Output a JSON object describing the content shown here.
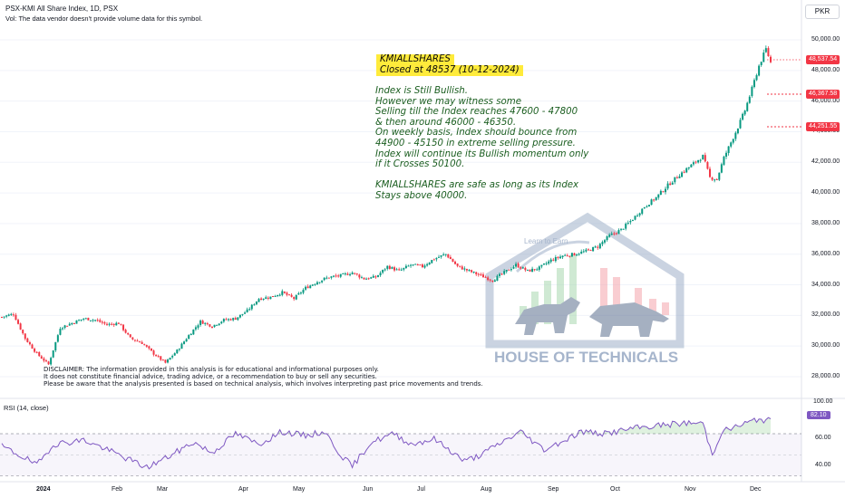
{
  "header": {
    "title": "PSX-KMI All Share Index, 1D, PSX",
    "vol_note": "Vol: The data vendor doesn't provide volume data for this symbol.",
    "currency": "PKR"
  },
  "price_axis": {
    "labels": [
      "50,000.00",
      "48,000.00",
      "46,000.00",
      "44,000.00",
      "42,000.00",
      "40,000.00",
      "38,000.00",
      "36,000.00",
      "34,000.00",
      "32,000.00",
      "30,000.00",
      "28,000.00"
    ],
    "tag_close": "48,537.54",
    "tag_level1": "46,367.58",
    "tag_level2": "44,251.55"
  },
  "annotation": {
    "headline_1": "KMIALLSHARES",
    "headline_2": "Closed at 48537 (10-12-2024)",
    "body": "Index is Still Bullish.\nHowever we may witness some\nSelling till the Index reaches 47600 - 47800\n& then around 46000 - 46350.\nOn weekly basis, Index should bounce from\n44900 - 45150 in extreme selling pressure.\nIndex will continue its Bullish momentum only\nif it Crosses 50100.\n\nKMIALLSHARES are safe as long as its Index\nStays above 40000."
  },
  "disclaimer": "DISCLAIMER: The information provided in this analysis is for educational and informational purposes only.\nIt does not constitute financial advice, trading advice, or a recommendation to buy or sell any securities.\nPlease be aware that the analysis presented is based on technical analysis, which involves interpreting past price movements and trends.",
  "watermark": {
    "brand": "HOUSE OF TECHNICALS",
    "arc_text": "Learn to Earn"
  },
  "rsi": {
    "title": "RSI (14, close)",
    "value": "82.10",
    "axis_labels": [
      "100.00",
      "60.00",
      "40.00"
    ]
  },
  "time_axis": {
    "months": [
      "2024",
      "Feb",
      "Mar",
      "Apr",
      "May",
      "Jun",
      "Jul",
      "Aug",
      "Sep",
      "Oct",
      "Nov",
      "Dec"
    ]
  },
  "colors": {
    "up": "#089981",
    "down": "#f23645",
    "rsi_line": "#7e57c2",
    "highlight": "#ffeb3b",
    "note_text": "#1b5e20"
  },
  "chart_data": {
    "type": "candlestick",
    "symbol": "PSX-KMI All Share Index",
    "interval": "1D",
    "ylim": [
      27000,
      50600
    ],
    "key_levels": [
      48537.54,
      46367.58,
      44251.55
    ],
    "close_path": [
      [
        0,
        31900
      ],
      [
        5,
        32100
      ],
      [
        10,
        30500
      ],
      [
        15,
        29500
      ],
      [
        20,
        28800
      ],
      [
        25,
        31200
      ],
      [
        30,
        31500
      ],
      [
        35,
        31800
      ],
      [
        40,
        31700
      ],
      [
        45,
        31400
      ],
      [
        50,
        31500
      ],
      [
        55,
        30500
      ],
      [
        60,
        30200
      ],
      [
        65,
        29500
      ],
      [
        70,
        28900
      ],
      [
        75,
        29700
      ],
      [
        80,
        30700
      ],
      [
        85,
        31600
      ],
      [
        90,
        31300
      ],
      [
        95,
        31700
      ],
      [
        100,
        31800
      ],
      [
        105,
        32300
      ],
      [
        110,
        33100
      ],
      [
        115,
        33200
      ],
      [
        120,
        33500
      ],
      [
        125,
        33100
      ],
      [
        130,
        33800
      ],
      [
        135,
        34200
      ],
      [
        140,
        34500
      ],
      [
        145,
        34600
      ],
      [
        150,
        34800
      ],
      [
        155,
        34400
      ],
      [
        160,
        34500
      ],
      [
        165,
        35200
      ],
      [
        170,
        34900
      ],
      [
        175,
        35300
      ],
      [
        180,
        35200
      ],
      [
        185,
        35700
      ],
      [
        190,
        36000
      ],
      [
        195,
        35200
      ],
      [
        200,
        34900
      ],
      [
        205,
        34600
      ],
      [
        210,
        34300
      ],
      [
        215,
        34800
      ],
      [
        220,
        35300
      ],
      [
        225,
        34900
      ],
      [
        230,
        35100
      ],
      [
        235,
        35600
      ],
      [
        240,
        35900
      ],
      [
        245,
        36000
      ],
      [
        250,
        36200
      ],
      [
        255,
        36500
      ],
      [
        260,
        37200
      ],
      [
        265,
        37600
      ],
      [
        270,
        38300
      ],
      [
        275,
        39100
      ],
      [
        280,
        39700
      ],
      [
        285,
        40500
      ],
      [
        290,
        41200
      ],
      [
        295,
        41800
      ],
      [
        300,
        42400
      ],
      [
        303,
        41000
      ],
      [
        306,
        40900
      ],
      [
        309,
        42300
      ],
      [
        312,
        43300
      ],
      [
        315,
        44300
      ],
      [
        318,
        45400
      ],
      [
        321,
        46800
      ],
      [
        324,
        48300
      ],
      [
        327,
        49400
      ],
      [
        329,
        48537
      ]
    ],
    "rsi_path": [
      [
        0,
        58
      ],
      [
        10,
        47
      ],
      [
        15,
        40
      ],
      [
        22,
        60
      ],
      [
        35,
        64
      ],
      [
        45,
        55
      ],
      [
        55,
        45
      ],
      [
        62,
        38
      ],
      [
        72,
        49
      ],
      [
        82,
        62
      ],
      [
        90,
        52
      ],
      [
        100,
        70
      ],
      [
        110,
        60
      ],
      [
        120,
        72
      ],
      [
        130,
        68
      ],
      [
        138,
        72
      ],
      [
        145,
        50
      ],
      [
        150,
        39
      ],
      [
        158,
        62
      ],
      [
        168,
        70
      ],
      [
        175,
        60
      ],
      [
        185,
        65
      ],
      [
        192,
        54
      ],
      [
        198,
        44
      ],
      [
        205,
        50
      ],
      [
        214,
        62
      ],
      [
        222,
        72
      ],
      [
        232,
        55
      ],
      [
        240,
        63
      ],
      [
        248,
        72
      ],
      [
        258,
        70
      ],
      [
        270,
        75
      ],
      [
        282,
        78
      ],
      [
        292,
        80
      ],
      [
        300,
        80
      ],
      [
        304,
        50
      ],
      [
        308,
        72
      ],
      [
        316,
        78
      ],
      [
        324,
        84
      ],
      [
        329,
        82
      ]
    ]
  }
}
